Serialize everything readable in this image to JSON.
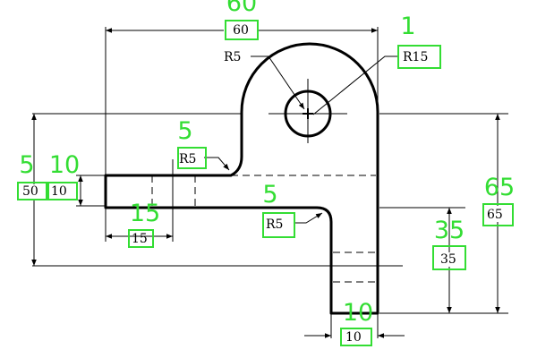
{
  "colors": {
    "line": "#000000",
    "annotation": "#33dd33",
    "background": "#ffffff"
  },
  "dimensions": {
    "overall_width": "60",
    "boss_radius": "R15",
    "hole_radius": "R5",
    "upper_fillet": "R5",
    "lower_fillet": "R5",
    "arm_thickness": "10",
    "left_height": "50",
    "slot_width": "15",
    "lower_height": "35",
    "total_height": "65",
    "leg_width": "10"
  },
  "annotations": {
    "top": "60",
    "top_right": "1",
    "left_a": "5",
    "left_b": "10",
    "upper_fillet": "5",
    "lower_fillet": "5",
    "slot": "15",
    "lower_height": "35",
    "total_height": "65",
    "leg": "10"
  }
}
